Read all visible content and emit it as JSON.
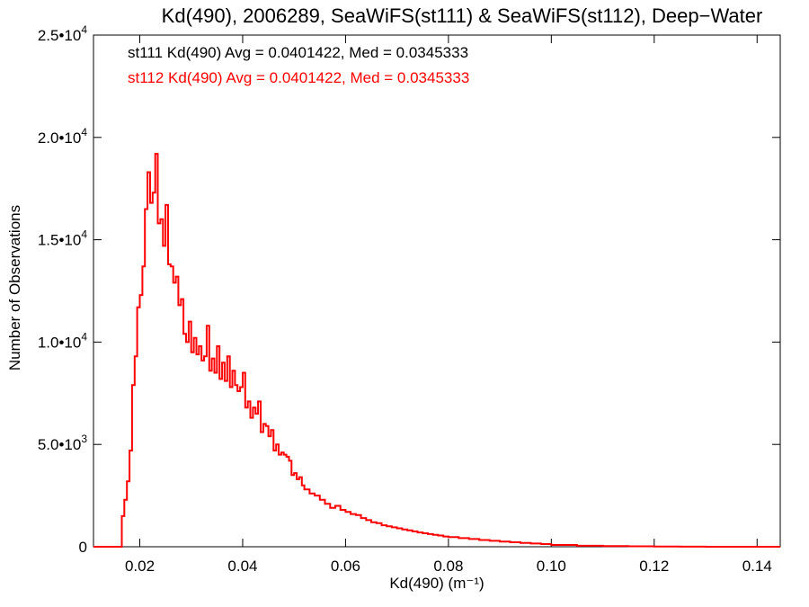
{
  "chart_data": {
    "type": "histogram",
    "title": "Kd(490), 2006289, SeaWiFS(st111) & SeaWiFS(st112), Deep−Water",
    "xlabel": "Kd(490) (m⁻¹)",
    "ylabel": "Number of Observations",
    "xlim": [
      0.011,
      0.1445
    ],
    "ylim": [
      0,
      25000
    ],
    "x_ticks": [
      0.02,
      0.04,
      0.06,
      0.08,
      0.1,
      0.12,
      0.14
    ],
    "x_tick_labels": [
      "0.02",
      "0.04",
      "0.06",
      "0.08",
      "0.10",
      "0.12",
      "0.14"
    ],
    "y_ticks": [
      {
        "value": 0,
        "mantissa": "0",
        "exponent": ""
      },
      {
        "value": 5000,
        "mantissa": "5.0•10",
        "exponent": "3"
      },
      {
        "value": 10000,
        "mantissa": "1.0•10",
        "exponent": "4"
      },
      {
        "value": 15000,
        "mantissa": "1.5•10",
        "exponent": "4"
      },
      {
        "value": 20000,
        "mantissa": "2.0•10",
        "exponent": "4"
      },
      {
        "value": 25000,
        "mantissa": "2.5•10",
        "exponent": "4"
      }
    ],
    "grid": false,
    "annotations": [
      {
        "text": "st111 Kd(490) Avg = 0.0401422, Med = 0.0345333",
        "color": "#000000"
      },
      {
        "text": "st112 Kd(490) Avg = 0.0401422, Med = 0.0345333",
        "color": "#ff0000"
      }
    ],
    "series": [
      {
        "color": "#ff0000",
        "step": "post",
        "x": [
          0.011,
          0.0165,
          0.017,
          0.0175,
          0.018,
          0.0185,
          0.019,
          0.0195,
          0.02,
          0.0205,
          0.021,
          0.0215,
          0.022,
          0.0225,
          0.023,
          0.0235,
          0.024,
          0.0245,
          0.025,
          0.0255,
          0.026,
          0.0265,
          0.027,
          0.0275,
          0.028,
          0.0285,
          0.029,
          0.0295,
          0.03,
          0.0305,
          0.031,
          0.0315,
          0.032,
          0.0325,
          0.033,
          0.0335,
          0.034,
          0.0345,
          0.035,
          0.0355,
          0.036,
          0.0365,
          0.037,
          0.0375,
          0.038,
          0.0385,
          0.039,
          0.0395,
          0.04,
          0.0405,
          0.041,
          0.0415,
          0.042,
          0.0425,
          0.043,
          0.0435,
          0.044,
          0.0445,
          0.045,
          0.0455,
          0.046,
          0.0465,
          0.047,
          0.0475,
          0.048,
          0.0485,
          0.049,
          0.0495,
          0.05,
          0.0505,
          0.051,
          0.0515,
          0.052,
          0.053,
          0.054,
          0.055,
          0.056,
          0.057,
          0.058,
          0.059,
          0.06,
          0.061,
          0.062,
          0.063,
          0.064,
          0.065,
          0.066,
          0.067,
          0.068,
          0.069,
          0.07,
          0.071,
          0.072,
          0.073,
          0.074,
          0.075,
          0.076,
          0.077,
          0.078,
          0.079,
          0.08,
          0.082,
          0.084,
          0.086,
          0.088,
          0.09,
          0.092,
          0.094,
          0.096,
          0.098,
          0.1,
          0.105,
          0.11,
          0.115,
          0.12,
          0.125,
          0.13,
          0.135,
          0.14,
          0.1445
        ],
        "y": [
          0,
          1500,
          2300,
          3200,
          4700,
          7900,
          9300,
          11700,
          12300,
          13700,
          16500,
          18300,
          16800,
          17300,
          19200,
          15800,
          16000,
          14700,
          16700,
          13800,
          13700,
          12900,
          13200,
          11800,
          12100,
          10400,
          10000,
          11000,
          9500,
          10200,
          9400,
          9800,
          9100,
          9300,
          10800,
          8600,
          9200,
          8500,
          9800,
          8200,
          9000,
          8100,
          9300,
          7800,
          8600,
          7900,
          7600,
          7800,
          8500,
          6800,
          7100,
          6300,
          6800,
          6500,
          7100,
          5600,
          6000,
          5900,
          5400,
          5700,
          4700,
          5000,
          4500,
          4600,
          4500,
          4400,
          4200,
          3500,
          3600,
          3300,
          3400,
          3000,
          2800,
          2600,
          2500,
          2300,
          2100,
          1900,
          2000,
          1800,
          1700,
          1600,
          1550,
          1400,
          1300,
          1200,
          1150,
          1050,
          1000,
          950,
          900,
          850,
          800,
          750,
          700,
          660,
          620,
          580,
          550,
          500,
          470,
          420,
          380,
          330,
          290,
          250,
          220,
          190,
          160,
          130,
          90,
          50,
          30,
          20,
          10,
          5,
          0,
          0,
          0
        ]
      }
    ]
  }
}
